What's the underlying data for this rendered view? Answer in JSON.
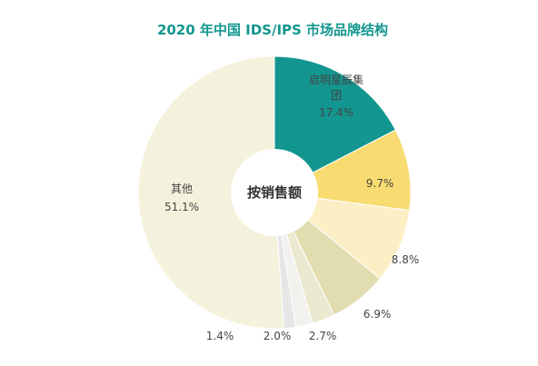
{
  "chart_data": {
    "type": "pie",
    "title": "2020 年中国 IDS/IPS 市场品牌结构",
    "center_label": "按销售额",
    "categories": [
      "启明星辰集团",
      null,
      null,
      null,
      null,
      null,
      null,
      "其他"
    ],
    "values": [
      17.4,
      9.7,
      8.8,
      6.9,
      2.7,
      2.0,
      1.4,
      51.1
    ],
    "value_labels": [
      "17.4%",
      "9.7%",
      "8.8%",
      "6.9%",
      "2.7%",
      "2.0%",
      "1.4%",
      "51.1%"
    ],
    "colors": [
      "#13968f",
      "#f8dc72",
      "#fcefc6",
      "#e1ddb0",
      "#ebe9cf",
      "#f1f1ee",
      "#e6e6e6",
      "#f4f2dc"
    ]
  }
}
